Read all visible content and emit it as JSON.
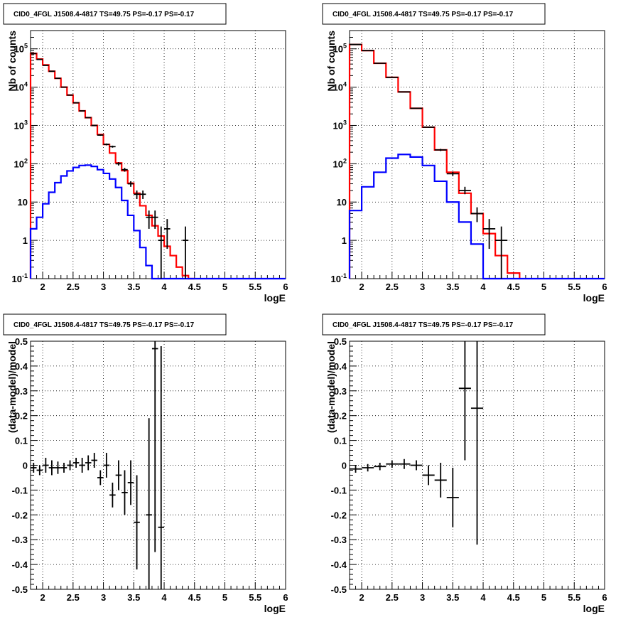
{
  "chart_data": [
    {
      "type": "line",
      "title": "CID0_4FGL J1508.4-4817 TS=49.75 PS=-0.17 PS=-0.17",
      "xlabel": "logE",
      "ylabel": "Nb of counts",
      "yscale": "log",
      "xlim": [
        1.8,
        6.0
      ],
      "ylim": [
        0.1,
        300000
      ],
      "grid": true,
      "xticks": [
        "2",
        "2.5",
        "3",
        "3.5",
        "4",
        "4.5",
        "5",
        "5.5",
        "6"
      ],
      "yticks": [
        "10^-1",
        "1",
        "10",
        "10^2",
        "10^3",
        "10^4",
        "10^5"
      ],
      "bin_width": 0.1,
      "series": [
        {
          "color": "#ff0000",
          "style": "histogram",
          "x": [
            1.85,
            1.95,
            2.05,
            2.15,
            2.25,
            2.35,
            2.45,
            2.55,
            2.65,
            2.75,
            2.85,
            2.95,
            3.05,
            3.15,
            3.25,
            3.35,
            3.45,
            3.55,
            3.65,
            3.75,
            3.85,
            3.95,
            4.05,
            4.15,
            4.25,
            4.35,
            4.45
          ],
          "y": [
            76000,
            54000,
            38000,
            26000,
            17000,
            10000,
            6200,
            3900,
            2400,
            1600,
            1000,
            580,
            320,
            190,
            105,
            66,
            31,
            17,
            8,
            4.5,
            2.4,
            1.3,
            0.7,
            0.4,
            0.2,
            0.12,
            0.05
          ]
        },
        {
          "color": "#0000ff",
          "style": "histogram",
          "x": [
            1.85,
            1.95,
            2.05,
            2.15,
            2.25,
            2.35,
            2.45,
            2.55,
            2.65,
            2.75,
            2.85,
            2.95,
            3.05,
            3.15,
            3.25,
            3.35,
            3.45,
            3.55,
            3.65,
            3.75,
            3.85,
            3.95,
            4.05,
            4.15,
            4.25,
            4.35,
            4.45,
            4.55,
            4.65,
            4.75,
            4.85,
            4.95,
            5.05,
            5.15,
            5.25,
            5.35,
            5.45,
            5.55,
            5.65,
            5.75,
            5.85,
            5.95
          ],
          "y": [
            2,
            4,
            9,
            18,
            32,
            48,
            65,
            80,
            90,
            92,
            85,
            70,
            56,
            40,
            24,
            11,
            4.5,
            1.8,
            0.65,
            0.22,
            0.1,
            0.1,
            0.1,
            0.1,
            0.1,
            0.1,
            0.1,
            0.1,
            0.1,
            0.1,
            0.1,
            0.1,
            0.1,
            0.1,
            0.1,
            0.1,
            0.1,
            0.1,
            0.1,
            0.1,
            0.1,
            0.1
          ]
        },
        {
          "color": "#000000",
          "style": "errorbar",
          "x": [
            1.85,
            1.95,
            2.05,
            2.15,
            2.25,
            2.35,
            2.45,
            2.55,
            2.65,
            2.75,
            2.85,
            2.95,
            3.05,
            3.15,
            3.25,
            3.35,
            3.45,
            3.55,
            3.65,
            3.75,
            3.85,
            3.95,
            4.05,
            4.35
          ],
          "y": [
            75000,
            53000,
            37000,
            26000,
            17000,
            10000,
            6200,
            3900,
            2400,
            1600,
            1000,
            560,
            320,
            280,
            100,
            70,
            30,
            16,
            16,
            4,
            4,
            1,
            2,
            1
          ],
          "ylo": [
            74700,
            52800,
            36800,
            25840,
            16870,
            9900,
            6120,
            3840,
            2350,
            1560,
            970,
            536,
            302,
            263,
            90,
            62,
            25,
            12,
            12,
            2,
            2,
            0.1,
            0.6,
            0.1
          ],
          "yhi": [
            75300,
            53200,
            37200,
            26160,
            17130,
            10100,
            6280,
            3960,
            2450,
            1640,
            1030,
            584,
            338,
            297,
            110,
            78,
            35,
            20,
            20,
            6,
            6,
            2.3,
            3.6,
            2.3
          ]
        }
      ]
    },
    {
      "type": "line",
      "title": "CID0_4FGL J1508.4-4817 TS=49.75 PS=-0.17 PS=-0.17",
      "xlabel": "logE",
      "ylabel": "Nb of counts",
      "yscale": "log",
      "xlim": [
        1.8,
        6.0
      ],
      "ylim": [
        0.1,
        300000
      ],
      "grid": true,
      "xticks": [
        "2",
        "2.5",
        "3",
        "3.5",
        "4",
        "4.5",
        "5",
        "5.5",
        "6"
      ],
      "yticks": [
        "10^-1",
        "1",
        "10",
        "10^2",
        "10^3",
        "10^4",
        "10^5"
      ],
      "bin_width": 0.2,
      "series": [
        {
          "color": "#ff0000",
          "style": "histogram",
          "x": [
            1.9,
            2.1,
            2.3,
            2.5,
            2.7,
            2.9,
            3.1,
            3.3,
            3.5,
            3.7,
            3.9,
            4.1,
            4.3,
            4.5
          ],
          "y": [
            130000,
            90000,
            42000,
            18000,
            7500,
            2800,
            900,
            230,
            60,
            17,
            5,
            1.5,
            0.4,
            0.14
          ]
        },
        {
          "color": "#0000ff",
          "style": "histogram",
          "x": [
            1.9,
            2.1,
            2.3,
            2.5,
            2.7,
            2.9,
            3.1,
            3.3,
            3.5,
            3.7,
            3.9,
            4.1,
            4.3,
            4.5,
            4.7,
            4.9,
            5.1,
            5.3,
            5.5,
            5.7,
            5.9
          ],
          "y": [
            6,
            25,
            60,
            140,
            175,
            150,
            90,
            35,
            10,
            3,
            0.8,
            0.1,
            0.1,
            0.1,
            0.1,
            0.1,
            0.1,
            0.1,
            0.1,
            0.1,
            0.1
          ]
        },
        {
          "color": "#000000",
          "style": "errorbar",
          "x": [
            1.9,
            2.1,
            2.3,
            2.5,
            2.7,
            2.9,
            3.1,
            3.3,
            3.5,
            3.7,
            3.9,
            4.1,
            4.3
          ],
          "y": [
            130000,
            90000,
            42000,
            18000,
            7500,
            2800,
            900,
            230,
            55,
            20,
            5,
            2,
            1
          ],
          "ylo": [
            129600,
            89700,
            41800,
            17870,
            7410,
            2750,
            870,
            215,
            48,
            16,
            3,
            0.6,
            0.1
          ],
          "yhi": [
            130400,
            90300,
            42200,
            18130,
            7590,
            2850,
            930,
            245,
            62,
            25,
            7.3,
            3.6,
            2.3
          ]
        }
      ]
    },
    {
      "type": "scatter",
      "title": "CID0_4FGL J1508.4-4817 TS=49.75 PS=-0.17 PS=-0.17",
      "xlabel": "logE",
      "ylabel": "(data-model)/model",
      "xlim": [
        1.8,
        6.0
      ],
      "ylim": [
        -0.5,
        0.5
      ],
      "grid": true,
      "xticks": [
        "2",
        "2.5",
        "3",
        "3.5",
        "4",
        "4.5",
        "5",
        "5.5",
        "6"
      ],
      "yticks": [
        "-0.5",
        "-0.4",
        "-0.3",
        "-0.2",
        "-0.1",
        "0",
        "0.1",
        "0.2",
        "0.3",
        "0.4",
        "0.5"
      ],
      "bin_width": 0.1,
      "series": [
        {
          "color": "#000000",
          "style": "errorbar",
          "x": [
            1.85,
            1.95,
            2.05,
            2.15,
            2.25,
            2.35,
            2.45,
            2.55,
            2.65,
            2.75,
            2.85,
            2.95,
            3.05,
            3.15,
            3.25,
            3.35,
            3.45,
            3.55,
            3.75,
            3.85,
            3.95
          ],
          "y": [
            -0.01,
            -0.02,
            0.0,
            -0.01,
            -0.01,
            -0.01,
            0.0,
            0.01,
            0.0,
            0.01,
            0.02,
            -0.05,
            0.0,
            -0.12,
            -0.04,
            -0.11,
            -0.07,
            -0.23,
            -0.2,
            0.47,
            -0.25
          ],
          "ylo": [
            -0.03,
            -0.04,
            -0.03,
            -0.04,
            -0.035,
            -0.03,
            -0.02,
            -0.01,
            -0.03,
            -0.02,
            -0.01,
            -0.08,
            -0.05,
            -0.17,
            -0.1,
            -0.2,
            -0.16,
            -0.42,
            -0.55,
            -0.35,
            -0.55
          ],
          "yhi": [
            0.01,
            0.0,
            0.03,
            0.02,
            0.015,
            0.01,
            0.02,
            0.03,
            0.03,
            0.04,
            0.05,
            -0.02,
            0.05,
            -0.07,
            0.02,
            -0.02,
            0.02,
            -0.04,
            0.19,
            0.55,
            0.48
          ]
        }
      ]
    },
    {
      "type": "scatter",
      "title": "CID0_4FGL J1508.4-4817 TS=49.75 PS=-0.17 PS=-0.17",
      "xlabel": "logE",
      "ylabel": "(data-model)/model",
      "xlim": [
        1.8,
        6.0
      ],
      "ylim": [
        -0.5,
        0.5
      ],
      "grid": true,
      "xticks": [
        "2",
        "2.5",
        "3",
        "3.5",
        "4",
        "4.5",
        "5",
        "5.5",
        "6"
      ],
      "yticks": [
        "-0.5",
        "-0.4",
        "-0.3",
        "-0.2",
        "-0.1",
        "0",
        "0.1",
        "0.2",
        "0.3",
        "0.4",
        "0.5"
      ],
      "bin_width": 0.2,
      "series": [
        {
          "color": "#000000",
          "style": "errorbar",
          "x": [
            1.9,
            2.1,
            2.3,
            2.5,
            2.7,
            2.9,
            3.1,
            3.3,
            3.5,
            3.7,
            3.9
          ],
          "y": [
            -0.015,
            -0.01,
            -0.005,
            0.005,
            0.005,
            0.0,
            -0.04,
            -0.06,
            -0.13,
            0.31,
            0.23
          ],
          "ylo": [
            -0.03,
            -0.025,
            -0.02,
            -0.01,
            -0.015,
            -0.02,
            -0.08,
            -0.13,
            -0.25,
            0.02,
            -0.32
          ],
          "yhi": [
            0.0,
            0.005,
            0.01,
            0.02,
            0.025,
            0.02,
            0.0,
            0.01,
            -0.01,
            0.55,
            0.55
          ]
        }
      ]
    }
  ]
}
